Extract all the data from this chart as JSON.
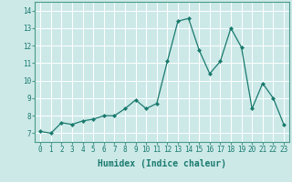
{
  "xlabel": "Humidex (Indice chaleur)",
  "x": [
    0,
    1,
    2,
    3,
    4,
    5,
    6,
    7,
    8,
    9,
    10,
    11,
    12,
    13,
    14,
    15,
    16,
    17,
    18,
    19,
    20,
    21,
    22,
    23
  ],
  "y": [
    7.1,
    7.0,
    7.6,
    7.5,
    7.7,
    7.8,
    8.0,
    8.0,
    8.4,
    8.9,
    8.4,
    8.7,
    11.1,
    13.4,
    13.55,
    11.75,
    10.4,
    11.1,
    13.0,
    11.9,
    8.4,
    9.85,
    9.0,
    7.5
  ],
  "line_color": "#1a7a6e",
  "marker": "D",
  "marker_size": 2.0,
  "background_color": "#cce9e8",
  "grid_color": "#ffffff",
  "ylim": [
    6.5,
    14.5
  ],
  "xlim": [
    -0.5,
    23.5
  ],
  "yticks": [
    7,
    8,
    9,
    10,
    11,
    12,
    13,
    14
  ],
  "xticks": [
    0,
    1,
    2,
    3,
    4,
    5,
    6,
    7,
    8,
    9,
    10,
    11,
    12,
    13,
    14,
    15,
    16,
    17,
    18,
    19,
    20,
    21,
    22,
    23
  ],
  "tick_fontsize": 5.5,
  "xlabel_fontsize": 7.0,
  "spine_color": "#4a9a8a"
}
